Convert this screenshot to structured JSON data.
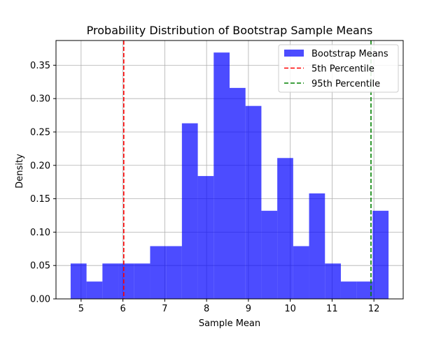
{
  "chart_data": {
    "type": "bar",
    "title": "Probability Distribution of Bootstrap Sample Means",
    "xlabel": "Sample Mean",
    "ylabel": "Density",
    "xlim": [
      4.4,
      12.7
    ],
    "ylim": [
      0,
      0.387
    ],
    "xticks": [
      5,
      6,
      7,
      8,
      9,
      10,
      11,
      12
    ],
    "yticks": [
      0.0,
      0.05,
      0.1,
      0.15,
      0.2,
      0.25,
      0.3,
      0.35
    ],
    "grid": true,
    "legend_position": "top-right",
    "histogram": {
      "name": "Bootstrap Means",
      "color": "#0000ff",
      "alpha": 0.7,
      "bins": [
        {
          "x0": 4.75,
          "x1": 5.13,
          "density": 0.053
        },
        {
          "x0": 5.13,
          "x1": 5.51,
          "density": 0.026
        },
        {
          "x0": 5.51,
          "x1": 5.89,
          "density": 0.053
        },
        {
          "x0": 5.89,
          "x1": 6.27,
          "density": 0.053
        },
        {
          "x0": 6.27,
          "x1": 6.65,
          "density": 0.053
        },
        {
          "x0": 6.65,
          "x1": 7.03,
          "density": 0.079
        },
        {
          "x0": 7.03,
          "x1": 7.41,
          "density": 0.079
        },
        {
          "x0": 7.41,
          "x1": 7.79,
          "density": 0.263
        },
        {
          "x0": 7.79,
          "x1": 8.17,
          "density": 0.184
        },
        {
          "x0": 8.17,
          "x1": 8.55,
          "density": 0.369
        },
        {
          "x0": 8.55,
          "x1": 8.93,
          "density": 0.316
        },
        {
          "x0": 8.93,
          "x1": 9.31,
          "density": 0.289
        },
        {
          "x0": 9.31,
          "x1": 9.69,
          "density": 0.132
        },
        {
          "x0": 9.69,
          "x1": 10.07,
          "density": 0.211
        },
        {
          "x0": 10.07,
          "x1": 10.45,
          "density": 0.079
        },
        {
          "x0": 10.45,
          "x1": 10.83,
          "density": 0.158
        },
        {
          "x0": 10.83,
          "x1": 11.21,
          "density": 0.053
        },
        {
          "x0": 11.21,
          "x1": 11.59,
          "density": 0.026
        },
        {
          "x0": 11.59,
          "x1": 11.97,
          "density": 0.026
        },
        {
          "x0": 11.97,
          "x1": 12.35,
          "density": 0.132
        }
      ]
    },
    "reference_lines": [
      {
        "name": "5th Percentile",
        "x": 6.02,
        "color": "#ff0000",
        "style": "dashed"
      },
      {
        "name": "95th Percentile",
        "x": 11.93,
        "color": "#008000",
        "style": "dashed"
      }
    ],
    "legend": [
      {
        "label": "Bootstrap Means",
        "kind": "patch",
        "color": "#0000ff"
      },
      {
        "label": "5th Percentile",
        "kind": "dashed-line",
        "color": "#ff0000"
      },
      {
        "label": "95th Percentile",
        "kind": "dashed-line",
        "color": "#008000"
      }
    ]
  }
}
